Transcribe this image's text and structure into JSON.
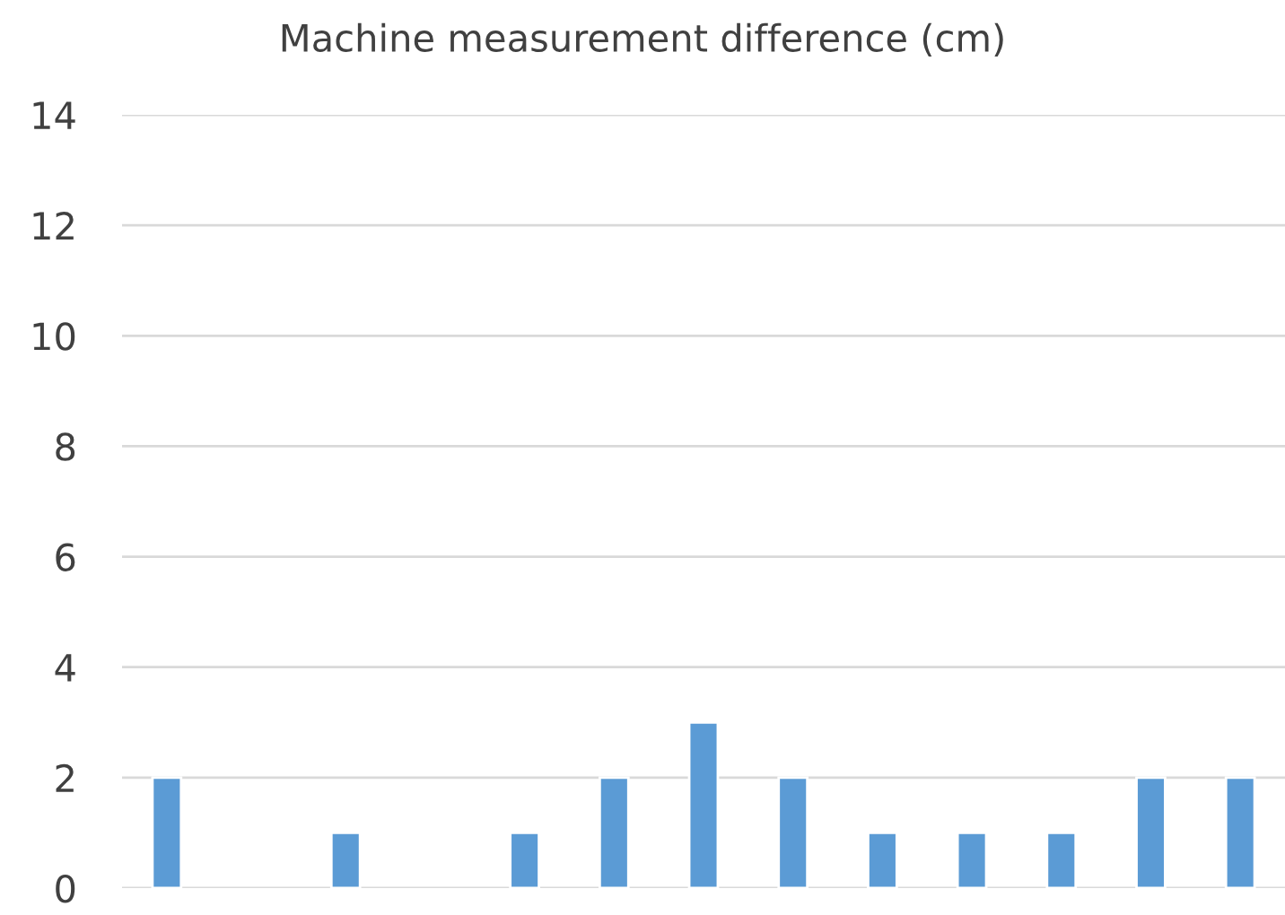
{
  "chart_data": {
    "type": "bar",
    "title": "Machine measurement difference (cm)",
    "categories": [
      null,
      null,
      null,
      null,
      null,
      null,
      null,
      null,
      null,
      null,
      null,
      null,
      null
    ],
    "values": [
      2,
      null,
      1,
      null,
      1,
      2,
      3,
      2,
      1,
      1,
      1,
      2,
      2
    ],
    "color": "#5b9bd5",
    "ylim": [
      0,
      14
    ],
    "yticks": [
      0,
      2,
      4,
      6,
      8,
      10,
      12,
      14
    ],
    "grid": "y",
    "tick_labels": "y"
  }
}
